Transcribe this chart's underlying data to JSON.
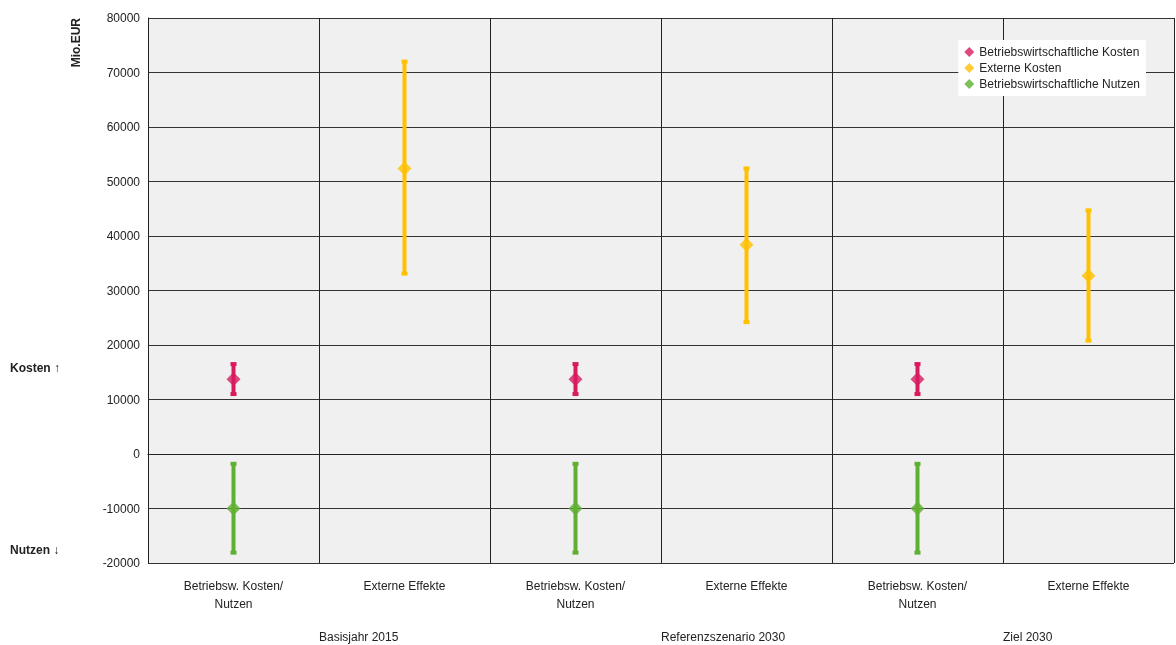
{
  "chart_data": {
    "type": "scatter",
    "ylabel": "Mio.EUR",
    "categories": [
      "Betriebsw. Kosten/Nutzen",
      "Externe Effekte",
      "Betriebsw. Kosten/Nutzen",
      "Externe Effekte",
      "Betriebsw. Kosten/Nutzen",
      "Externe Effekte"
    ],
    "series": [
      {
        "name": "Betriebswirtschaftliche Kosten",
        "color": "#d81b60",
        "values": [
          13700,
          null,
          13700,
          null,
          13700,
          null
        ],
        "errors": [
          [
            11000,
            16500
          ],
          null,
          [
            11000,
            16500
          ],
          null,
          [
            11000,
            16500
          ],
          null
        ]
      },
      {
        "name": "Externe Kosten",
        "color": "#ffc000",
        "values": [
          null,
          52400,
          null,
          38400,
          null,
          32700
        ],
        "errors": [
          null,
          [
            33100,
            72000
          ],
          null,
          [
            24200,
            52400
          ],
          null,
          [
            20800,
            44700
          ]
        ]
      },
      {
        "name": "Betriebswirtschaftliche Nutzen",
        "color": "#5faf32",
        "values": [
          -10000,
          null,
          -10000,
          null,
          -10000,
          null
        ],
        "errors": [
          [
            -18100,
            -1800
          ],
          null,
          [
            -18100,
            -1800
          ],
          null,
          [
            -18100,
            -1800
          ],
          null
        ]
      }
    ],
    "ylim": [
      -20000,
      80000
    ],
    "yticks": [
      -20000,
      -10000,
      0,
      10000,
      20000,
      30000,
      40000,
      50000,
      60000,
      70000,
      80000
    ],
    "grid": true,
    "legend": "top right",
    "marker": "diamond",
    "annotations": [
      "Basisjahr 2015",
      "Referenzszenario 2030",
      "Ziel 2030",
      "Kosten ↑",
      "Nutzen ↓"
    ]
  }
}
